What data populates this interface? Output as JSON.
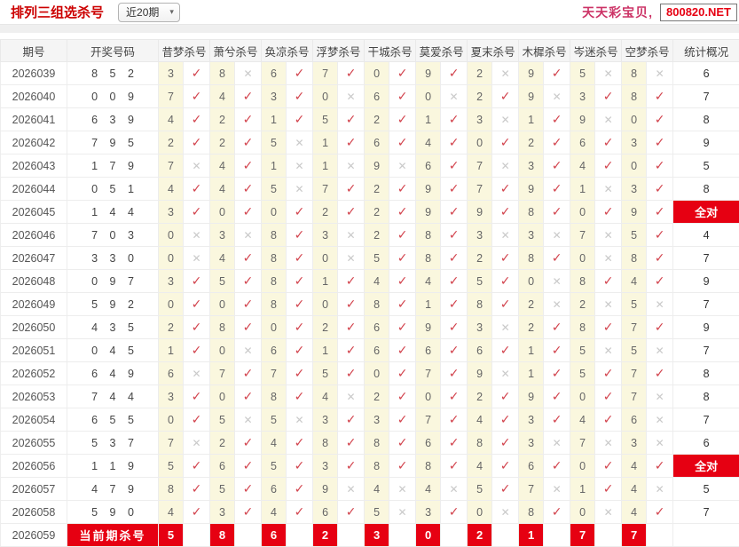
{
  "header": {
    "title": "排列三组选杀号",
    "range_value": "近20期",
    "site_name": "天天彩宝贝,",
    "site_url": "800820.NET"
  },
  "colors": {
    "accent_red": "#e60012",
    "title_red": "#cc0000",
    "site_pink": "#cc3366",
    "check_red": "#d2434d",
    "cross_gray": "#c9c9c9",
    "cell_yellow": "#faf7de"
  },
  "marks": {
    "hit": "✓",
    "miss": "✕"
  },
  "table": {
    "columns": [
      "期号",
      "开奖号码",
      "昔梦杀号",
      "萧兮杀号",
      "奂凉杀号",
      "浮梦杀号",
      "干城杀号",
      "莫爱杀号",
      "夏末杀号",
      "木樨杀号",
      "岑迷杀号",
      "空梦杀号",
      "统计概况"
    ],
    "all_correct_label": "全对",
    "rows": [
      {
        "period": "2026039",
        "result": "8 5 2",
        "kills": [
          [
            3,
            1
          ],
          [
            8,
            0
          ],
          [
            6,
            1
          ],
          [
            7,
            1
          ],
          [
            0,
            1
          ],
          [
            9,
            1
          ],
          [
            2,
            0
          ],
          [
            9,
            1
          ],
          [
            5,
            0
          ],
          [
            8,
            0
          ]
        ],
        "stat": "6"
      },
      {
        "period": "2026040",
        "result": "0 0 9",
        "kills": [
          [
            7,
            1
          ],
          [
            4,
            1
          ],
          [
            3,
            1
          ],
          [
            0,
            0
          ],
          [
            6,
            1
          ],
          [
            0,
            0
          ],
          [
            2,
            1
          ],
          [
            9,
            0
          ],
          [
            3,
            1
          ],
          [
            8,
            1
          ]
        ],
        "stat": "7"
      },
      {
        "period": "2026041",
        "result": "6 3 9",
        "kills": [
          [
            4,
            1
          ],
          [
            2,
            1
          ],
          [
            1,
            1
          ],
          [
            5,
            1
          ],
          [
            2,
            1
          ],
          [
            1,
            1
          ],
          [
            3,
            0
          ],
          [
            1,
            1
          ],
          [
            9,
            0
          ],
          [
            0,
            1
          ]
        ],
        "stat": "8"
      },
      {
        "period": "2026042",
        "result": "7 9 5",
        "kills": [
          [
            2,
            1
          ],
          [
            2,
            1
          ],
          [
            5,
            0
          ],
          [
            1,
            1
          ],
          [
            6,
            1
          ],
          [
            4,
            1
          ],
          [
            0,
            1
          ],
          [
            2,
            1
          ],
          [
            6,
            1
          ],
          [
            3,
            1
          ]
        ],
        "stat": "9"
      },
      {
        "period": "2026043",
        "result": "1 7 9",
        "kills": [
          [
            7,
            0
          ],
          [
            4,
            1
          ],
          [
            1,
            0
          ],
          [
            1,
            0
          ],
          [
            9,
            0
          ],
          [
            6,
            1
          ],
          [
            7,
            0
          ],
          [
            3,
            1
          ],
          [
            4,
            1
          ],
          [
            0,
            1
          ]
        ],
        "stat": "5"
      },
      {
        "period": "2026044",
        "result": "0 5 1",
        "kills": [
          [
            4,
            1
          ],
          [
            4,
            1
          ],
          [
            5,
            0
          ],
          [
            7,
            1
          ],
          [
            2,
            1
          ],
          [
            9,
            1
          ],
          [
            7,
            1
          ],
          [
            9,
            1
          ],
          [
            1,
            0
          ],
          [
            3,
            1
          ]
        ],
        "stat": "8"
      },
      {
        "period": "2026045",
        "result": "1 4 4",
        "kills": [
          [
            3,
            1
          ],
          [
            0,
            1
          ],
          [
            0,
            1
          ],
          [
            2,
            1
          ],
          [
            2,
            1
          ],
          [
            9,
            1
          ],
          [
            9,
            1
          ],
          [
            8,
            1
          ],
          [
            0,
            1
          ],
          [
            9,
            1
          ]
        ],
        "stat": "全对"
      },
      {
        "period": "2026046",
        "result": "7 0 3",
        "kills": [
          [
            0,
            0
          ],
          [
            3,
            0
          ],
          [
            8,
            1
          ],
          [
            3,
            0
          ],
          [
            2,
            1
          ],
          [
            8,
            1
          ],
          [
            3,
            0
          ],
          [
            3,
            0
          ],
          [
            7,
            0
          ],
          [
            5,
            1
          ]
        ],
        "stat": "4"
      },
      {
        "period": "2026047",
        "result": "3 3 0",
        "kills": [
          [
            0,
            0
          ],
          [
            4,
            1
          ],
          [
            8,
            1
          ],
          [
            0,
            0
          ],
          [
            5,
            1
          ],
          [
            8,
            1
          ],
          [
            2,
            1
          ],
          [
            8,
            1
          ],
          [
            0,
            0
          ],
          [
            8,
            1
          ]
        ],
        "stat": "7"
      },
      {
        "period": "2026048",
        "result": "0 9 7",
        "kills": [
          [
            3,
            1
          ],
          [
            5,
            1
          ],
          [
            8,
            1
          ],
          [
            1,
            1
          ],
          [
            4,
            1
          ],
          [
            4,
            1
          ],
          [
            5,
            1
          ],
          [
            0,
            0
          ],
          [
            8,
            1
          ],
          [
            4,
            1
          ]
        ],
        "stat": "9"
      },
      {
        "period": "2026049",
        "result": "5 9 2",
        "kills": [
          [
            0,
            1
          ],
          [
            0,
            1
          ],
          [
            8,
            1
          ],
          [
            0,
            1
          ],
          [
            8,
            1
          ],
          [
            1,
            1
          ],
          [
            8,
            1
          ],
          [
            2,
            0
          ],
          [
            2,
            0
          ],
          [
            5,
            0
          ]
        ],
        "stat": "7"
      },
      {
        "period": "2026050",
        "result": "4 3 5",
        "kills": [
          [
            2,
            1
          ],
          [
            8,
            1
          ],
          [
            0,
            1
          ],
          [
            2,
            1
          ],
          [
            6,
            1
          ],
          [
            9,
            1
          ],
          [
            3,
            0
          ],
          [
            2,
            1
          ],
          [
            8,
            1
          ],
          [
            7,
            1
          ]
        ],
        "stat": "9"
      },
      {
        "period": "2026051",
        "result": "0 4 5",
        "kills": [
          [
            1,
            1
          ],
          [
            0,
            0
          ],
          [
            6,
            1
          ],
          [
            1,
            1
          ],
          [
            6,
            1
          ],
          [
            6,
            1
          ],
          [
            6,
            1
          ],
          [
            1,
            1
          ],
          [
            5,
            0
          ],
          [
            5,
            0
          ]
        ],
        "stat": "7"
      },
      {
        "period": "2026052",
        "result": "6 4 9",
        "kills": [
          [
            6,
            0
          ],
          [
            7,
            1
          ],
          [
            7,
            1
          ],
          [
            5,
            1
          ],
          [
            0,
            1
          ],
          [
            7,
            1
          ],
          [
            9,
            0
          ],
          [
            1,
            1
          ],
          [
            5,
            1
          ],
          [
            7,
            1
          ]
        ],
        "stat": "8"
      },
      {
        "period": "2026053",
        "result": "7 4 4",
        "kills": [
          [
            3,
            1
          ],
          [
            0,
            1
          ],
          [
            8,
            1
          ],
          [
            4,
            0
          ],
          [
            2,
            1
          ],
          [
            0,
            1
          ],
          [
            2,
            1
          ],
          [
            9,
            1
          ],
          [
            0,
            1
          ],
          [
            7,
            0
          ]
        ],
        "stat": "8"
      },
      {
        "period": "2026054",
        "result": "6 5 5",
        "kills": [
          [
            0,
            1
          ],
          [
            5,
            0
          ],
          [
            5,
            0
          ],
          [
            3,
            1
          ],
          [
            3,
            1
          ],
          [
            7,
            1
          ],
          [
            4,
            1
          ],
          [
            3,
            1
          ],
          [
            4,
            1
          ],
          [
            6,
            0
          ]
        ],
        "stat": "7"
      },
      {
        "period": "2026055",
        "result": "5 3 7",
        "kills": [
          [
            7,
            0
          ],
          [
            2,
            1
          ],
          [
            4,
            1
          ],
          [
            8,
            1
          ],
          [
            8,
            1
          ],
          [
            6,
            1
          ],
          [
            8,
            1
          ],
          [
            3,
            0
          ],
          [
            7,
            0
          ],
          [
            3,
            0
          ]
        ],
        "stat": "6"
      },
      {
        "period": "2026056",
        "result": "1 1 9",
        "kills": [
          [
            5,
            1
          ],
          [
            6,
            1
          ],
          [
            5,
            1
          ],
          [
            3,
            1
          ],
          [
            8,
            1
          ],
          [
            8,
            1
          ],
          [
            4,
            1
          ],
          [
            6,
            1
          ],
          [
            0,
            1
          ],
          [
            4,
            1
          ]
        ],
        "stat": "全对"
      },
      {
        "period": "2026057",
        "result": "4 7 9",
        "kills": [
          [
            8,
            1
          ],
          [
            5,
            1
          ],
          [
            6,
            1
          ],
          [
            9,
            0
          ],
          [
            4,
            0
          ],
          [
            4,
            0
          ],
          [
            5,
            1
          ],
          [
            7,
            0
          ],
          [
            1,
            1
          ],
          [
            4,
            0
          ]
        ],
        "stat": "5"
      },
      {
        "period": "2026058",
        "result": "5 9 0",
        "kills": [
          [
            4,
            1
          ],
          [
            3,
            1
          ],
          [
            4,
            1
          ],
          [
            6,
            1
          ],
          [
            5,
            0
          ],
          [
            3,
            1
          ],
          [
            0,
            0
          ],
          [
            8,
            1
          ],
          [
            0,
            0
          ],
          [
            4,
            1
          ]
        ],
        "stat": "7"
      }
    ],
    "current_row": {
      "period": "2026059",
      "label": "当前期杀号",
      "kills": [
        5,
        8,
        6,
        2,
        3,
        0,
        2,
        1,
        7,
        7
      ],
      "stat": ""
    }
  }
}
